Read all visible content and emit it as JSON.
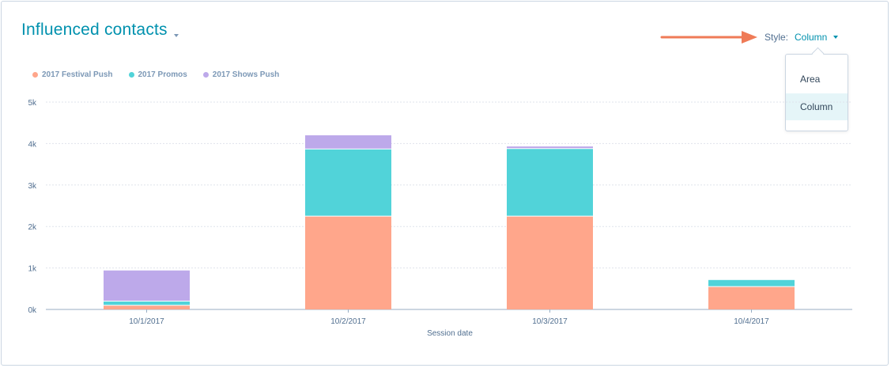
{
  "header": {
    "title": "Influenced contacts",
    "style_label": "Style:",
    "style_value": "Column"
  },
  "dropdown": {
    "options": [
      "Area",
      "Column"
    ],
    "selected": "Column"
  },
  "colors": {
    "accent": "#0091ae",
    "arrow": "#ef7b57",
    "festival": "#ffa68b",
    "promos": "#51d3d9",
    "shows": "#bda9ea"
  },
  "chart_data": {
    "type": "bar",
    "stacked": true,
    "xlabel": "Session date",
    "ylabel": "",
    "categories": [
      "10/1/2017",
      "10/2/2017",
      "10/3/2017",
      "10/4/2017"
    ],
    "series": [
      {
        "name": "2017 Festival Push",
        "values": [
          100,
          2250,
          2250,
          550
        ],
        "color": "#ffa68b"
      },
      {
        "name": "2017 Promos",
        "values": [
          100,
          1620,
          1630,
          160
        ],
        "color": "#51d3d9"
      },
      {
        "name": "2017 Shows Push",
        "values": [
          740,
          330,
          50,
          0
        ],
        "color": "#bda9ea"
      }
    ],
    "ylim": [
      0,
      5000
    ],
    "yticks": [
      0,
      1000,
      2000,
      3000,
      4000,
      5000
    ],
    "ytick_labels": [
      "0k",
      "1k",
      "2k",
      "3k",
      "4k",
      "5k"
    ],
    "grid": true,
    "legend_position": "top-left"
  }
}
